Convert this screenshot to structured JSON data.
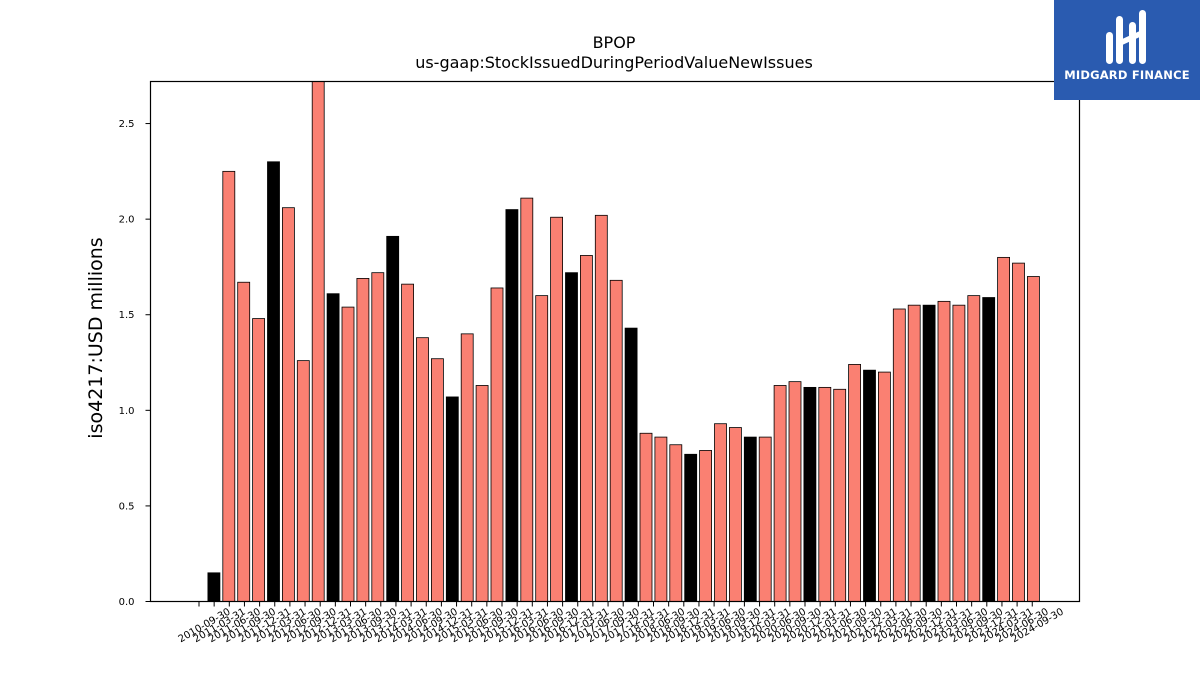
{
  "logo": {
    "text": "MIDGARD FINANCE",
    "background": "#2a5bb0"
  },
  "chart_data": {
    "type": "bar",
    "title": "BPOP",
    "subtitle": "us-gaap:StockIssuedDuringPeriodValueNewIssues",
    "ylabel": "iso4217:USD  millions",
    "xlabel": "",
    "ylim": [
      0,
      2.72
    ],
    "yticks": [
      0.0,
      0.5,
      1.0,
      1.5,
      2.0,
      2.5
    ],
    "grid": false,
    "colors": {
      "q4": "#000000",
      "other": "#fa8072",
      "edge": "#000000"
    },
    "categories": [
      "2010-09-30",
      "2010-12-31",
      "2011-03-31",
      "2011-06-30",
      "2011-09-30",
      "2011-12-31",
      "2012-03-31",
      "2012-06-30",
      "2012-09-30",
      "2012-12-31",
      "2013-03-31",
      "2013-06-30",
      "2013-09-30",
      "2013-12-31",
      "2014-03-31",
      "2014-06-30",
      "2014-09-30",
      "2014-12-31",
      "2015-03-31",
      "2015-06-30",
      "2015-09-30",
      "2015-12-31",
      "2016-03-31",
      "2016-06-30",
      "2016-09-30",
      "2016-12-31",
      "2017-03-31",
      "2017-06-30",
      "2017-09-30",
      "2017-12-31",
      "2018-03-31",
      "2018-06-30",
      "2018-09-30",
      "2018-12-31",
      "2019-03-31",
      "2019-06-30",
      "2019-09-30",
      "2019-12-31",
      "2020-03-31",
      "2020-06-30",
      "2020-09-30",
      "2020-12-31",
      "2021-03-31",
      "2021-06-30",
      "2021-09-30",
      "2021-12-31",
      "2022-03-31",
      "2022-06-30",
      "2022-09-30",
      "2022-12-31",
      "2023-03-31",
      "2023-06-30",
      "2023-09-30",
      "2023-12-31",
      "2024-03-31",
      "2024-06-30",
      "2024-09-30"
    ],
    "xtick_labels": [
      "2010-09-30",
      "2011-03-31",
      "2011-06-30",
      "2011-09-30",
      "2011-12-31",
      "2012-03-31",
      "2012-06-30",
      "2012-09-30",
      "2012-12-31",
      "2013-03-31",
      "2013-06-30",
      "2013-09-30",
      "2013-12-31",
      "2014-03-31",
      "2014-06-30",
      "2014-09-30",
      "2014-12-31",
      "2015-03-31",
      "2015-06-30",
      "2015-09-30",
      "2015-12-31",
      "2016-03-31",
      "2016-06-30",
      "2016-09-30",
      "2016-12-31",
      "2017-03-31",
      "2017-06-30",
      "2017-09-30",
      "2017-12-31",
      "2018-03-31",
      "2018-06-30",
      "2018-09-30",
      "2018-12-31",
      "2019-03-31",
      "2019-06-30",
      "2019-09-30",
      "2019-12-31",
      "2020-03-31",
      "2020-06-30",
      "2020-09-30",
      "2020-12-31",
      "2021-03-31",
      "2021-06-30",
      "2021-09-30",
      "2021-12-31",
      "2022-03-31",
      "2022-06-30",
      "2022-09-30",
      "2022-12-31",
      "2023-03-31",
      "2023-06-30",
      "2023-09-30",
      "2023-12-31",
      "2024-03-31",
      "2024-06-30",
      "2024-09-30"
    ],
    "series": [
      {
        "values": [
          null,
          0.15,
          2.25,
          1.67,
          1.48,
          2.3,
          2.06,
          1.26,
          2.73,
          1.61,
          1.54,
          1.69,
          1.72,
          1.91,
          1.66,
          1.38,
          1.27,
          1.07,
          1.4,
          1.13,
          1.64,
          2.05,
          2.11,
          1.6,
          2.01,
          1.72,
          1.81,
          2.02,
          1.68,
          1.43,
          0.88,
          0.86,
          0.82,
          0.77,
          0.79,
          0.93,
          0.91,
          0.86,
          0.86,
          1.13,
          1.15,
          1.12,
          1.12,
          1.11,
          1.24,
          1.21,
          1.2,
          1.53,
          1.55,
          1.55,
          1.57,
          1.55,
          1.6,
          1.59,
          1.8,
          1.77,
          1.7
        ]
      }
    ]
  }
}
